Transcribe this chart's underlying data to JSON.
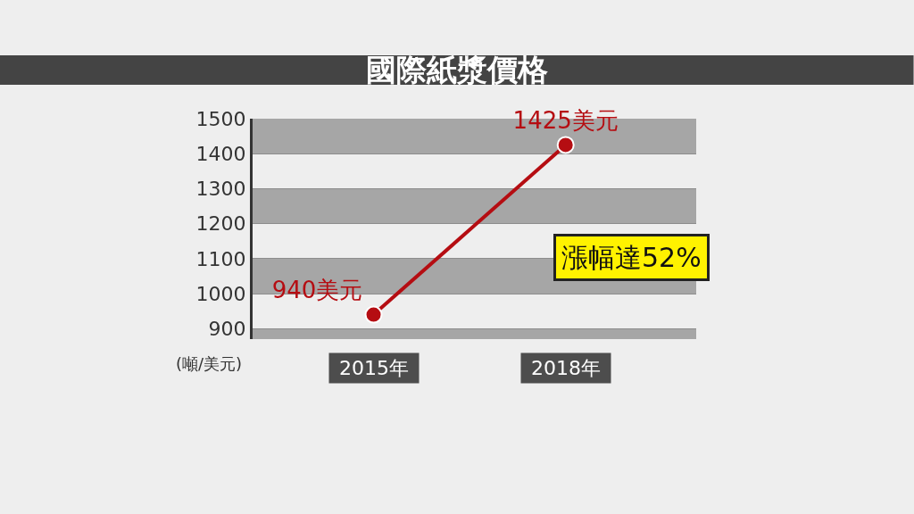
{
  "chart_data": {
    "type": "line",
    "title": "國際紙漿價格",
    "ylabel": "(噸/美元)",
    "categories": [
      "2015年",
      "2018年"
    ],
    "series": [
      {
        "color": "#b50d12",
        "values": [
          940,
          1425
        ],
        "value_labels": [
          "940美元",
          "1425美元"
        ]
      }
    ],
    "ylim": [
      870,
      1500
    ],
    "yticks": [
      900,
      1000,
      1100,
      1200,
      1300,
      1400,
      1500
    ],
    "grid": true,
    "marker": "circle",
    "line_style": "solid",
    "annotations": [
      "漲幅達52%"
    ]
  }
}
